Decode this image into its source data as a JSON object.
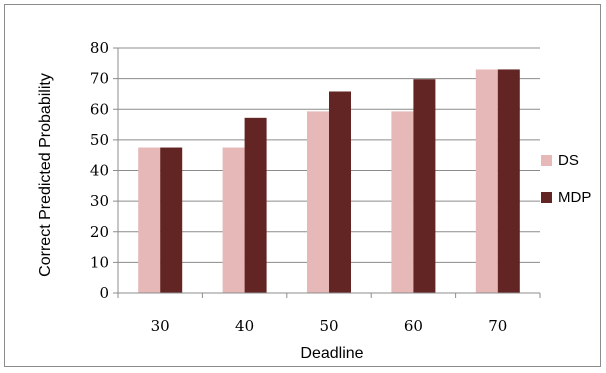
{
  "chart_data": {
    "type": "bar",
    "title": "",
    "xlabel": "Deadline",
    "ylabel": "Correct Predicted Probability",
    "categories": [
      "30",
      "40",
      "50",
      "60",
      "70"
    ],
    "series": [
      {
        "name": "DS",
        "values": [
          47.5,
          47.5,
          59.3,
          59.3,
          73
        ],
        "color": "#e6b8b7"
      },
      {
        "name": "MDP",
        "values": [
          47.5,
          57.2,
          65.8,
          69.8,
          73
        ],
        "color": "#632523"
      }
    ],
    "ylim": [
      0,
      80
    ],
    "yticks": [
      0,
      10,
      20,
      30,
      40,
      50,
      60,
      70,
      80
    ],
    "grid": true,
    "legend_position": "right"
  }
}
